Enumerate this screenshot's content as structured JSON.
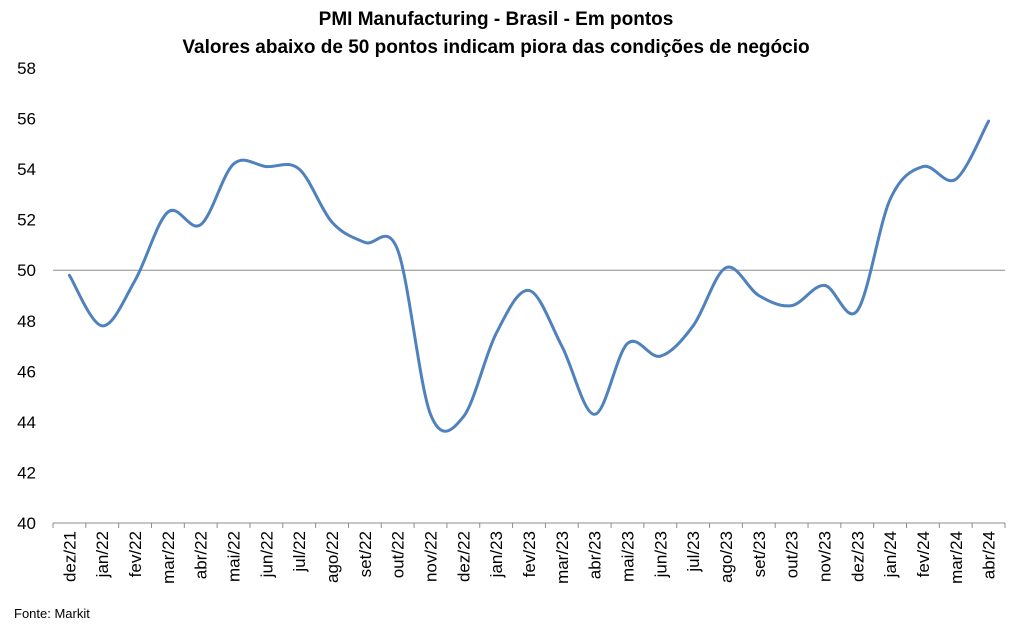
{
  "chart_data": {
    "type": "line",
    "title": "PMI Manufacturing - Brasil - Em pontos",
    "subtitle": "Valores abaixo de 50 pontos indicam piora das condições de negócio",
    "xlabel": "",
    "ylabel": "",
    "ylim": [
      40,
      58
    ],
    "yticks": [
      "40",
      "42",
      "44",
      "46",
      "48",
      "50",
      "52",
      "54",
      "56",
      "58"
    ],
    "reference_line": 50,
    "grid": false,
    "categories": [
      "dez/21",
      "jan/22",
      "fev/22",
      "mar/22",
      "abr/22",
      "mai/22",
      "jun/22",
      "jul/22",
      "ago/22",
      "set/22",
      "out/22",
      "nov/22",
      "dez/22",
      "jan/23",
      "fev/23",
      "mar/23",
      "abr/23",
      "mai/23",
      "jun/23",
      "jul/23",
      "ago/23",
      "set/23",
      "out/23",
      "nov/23",
      "dez/23",
      "jan/24",
      "fev/24",
      "mar/24",
      "abr/24"
    ],
    "series": [
      {
        "color": "#4F81BD",
        "values": [
          49.8,
          47.8,
          49.6,
          52.3,
          51.8,
          54.2,
          54.1,
          54.0,
          51.9,
          51.1,
          50.8,
          44.3,
          44.2,
          47.5,
          49.2,
          47.0,
          44.3,
          47.1,
          46.6,
          47.8,
          50.1,
          49.0,
          48.6,
          49.4,
          48.4,
          52.8,
          54.1,
          53.6,
          55.9
        ]
      }
    ]
  },
  "source": "Fonte: Markit"
}
